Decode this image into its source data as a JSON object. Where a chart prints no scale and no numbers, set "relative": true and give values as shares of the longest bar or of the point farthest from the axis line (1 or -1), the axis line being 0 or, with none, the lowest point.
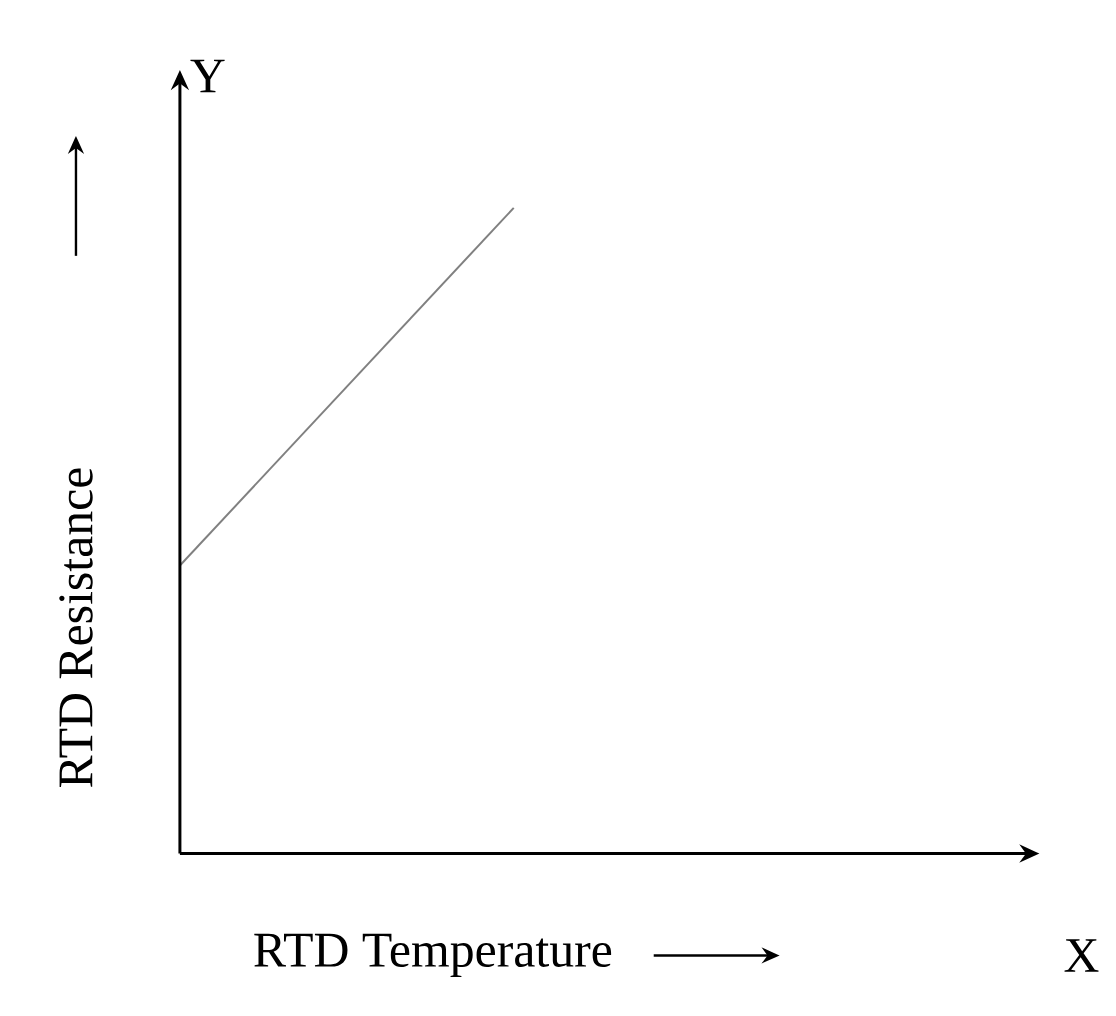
{
  "chart_data": {
    "type": "line",
    "xlabel": "RTD Temperature",
    "ylabel": "RTD Resistance",
    "annotations": [
      "Y",
      "X"
    ],
    "categories": [
      null,
      null
    ],
    "values": [
      0.446,
      1
    ],
    "color": "#808080",
    "relative": true
  }
}
